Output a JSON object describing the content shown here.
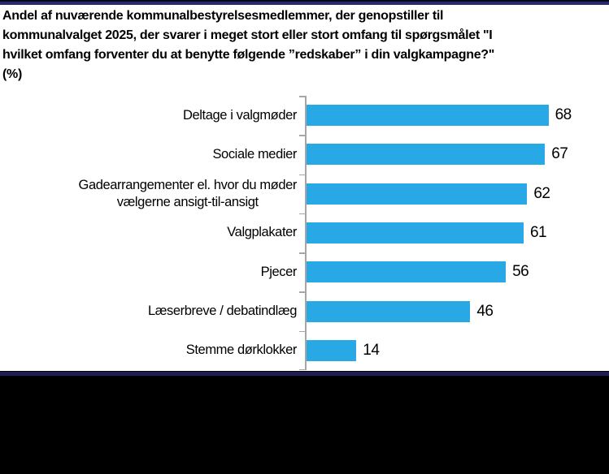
{
  "title": {
    "text": "Andel af nuværende kommunalbestyrelsesmedlemmer, der genopstiller til\nkommunalvalget 2025, der svarer i meget stort eller stort omfang til spørgsmålet \"I\nhvilket omfang forventer du at benytte følgende ”redskaber” i din valgkampagne?\"\n(%)"
  },
  "chart_data": {
    "type": "bar",
    "orientation": "horizontal",
    "title": "Andel af nuværende kommunalbestyrelsesmedlemmer, der genopstiller til kommunalvalget 2025, der svarer i meget stort eller stort omfang til spørgsmålet \"I hvilket omfang forventer du at benytte følgende ”redskaber” i din valgkampagne?\" (%)",
    "categories": [
      "Deltage i valgmøder",
      "Sociale medier",
      "Gadearrangementer el. hvor du møder\nvælgerne ansigt-til-ansigt",
      "Valgplakater",
      "Pjecer",
      "Læserbreve / debatindlæg",
      "Stemme dørklokker"
    ],
    "values": [
      68,
      67,
      62,
      61,
      56,
      46,
      14
    ],
    "data_labels": [
      "68",
      "67",
      "62",
      "61",
      "56",
      "46",
      "14"
    ],
    "xlabel": "",
    "ylabel": "",
    "xlim": [
      0,
      85
    ],
    "grid": false,
    "legend": false,
    "unit": "%"
  },
  "colors": {
    "bar": "#29A8E6",
    "axis": "#A6A6A6",
    "navy_top": "#272A68",
    "navy_bottom": "#1E1D56",
    "edge_black": "#08081C",
    "footer_black": "#000000"
  }
}
